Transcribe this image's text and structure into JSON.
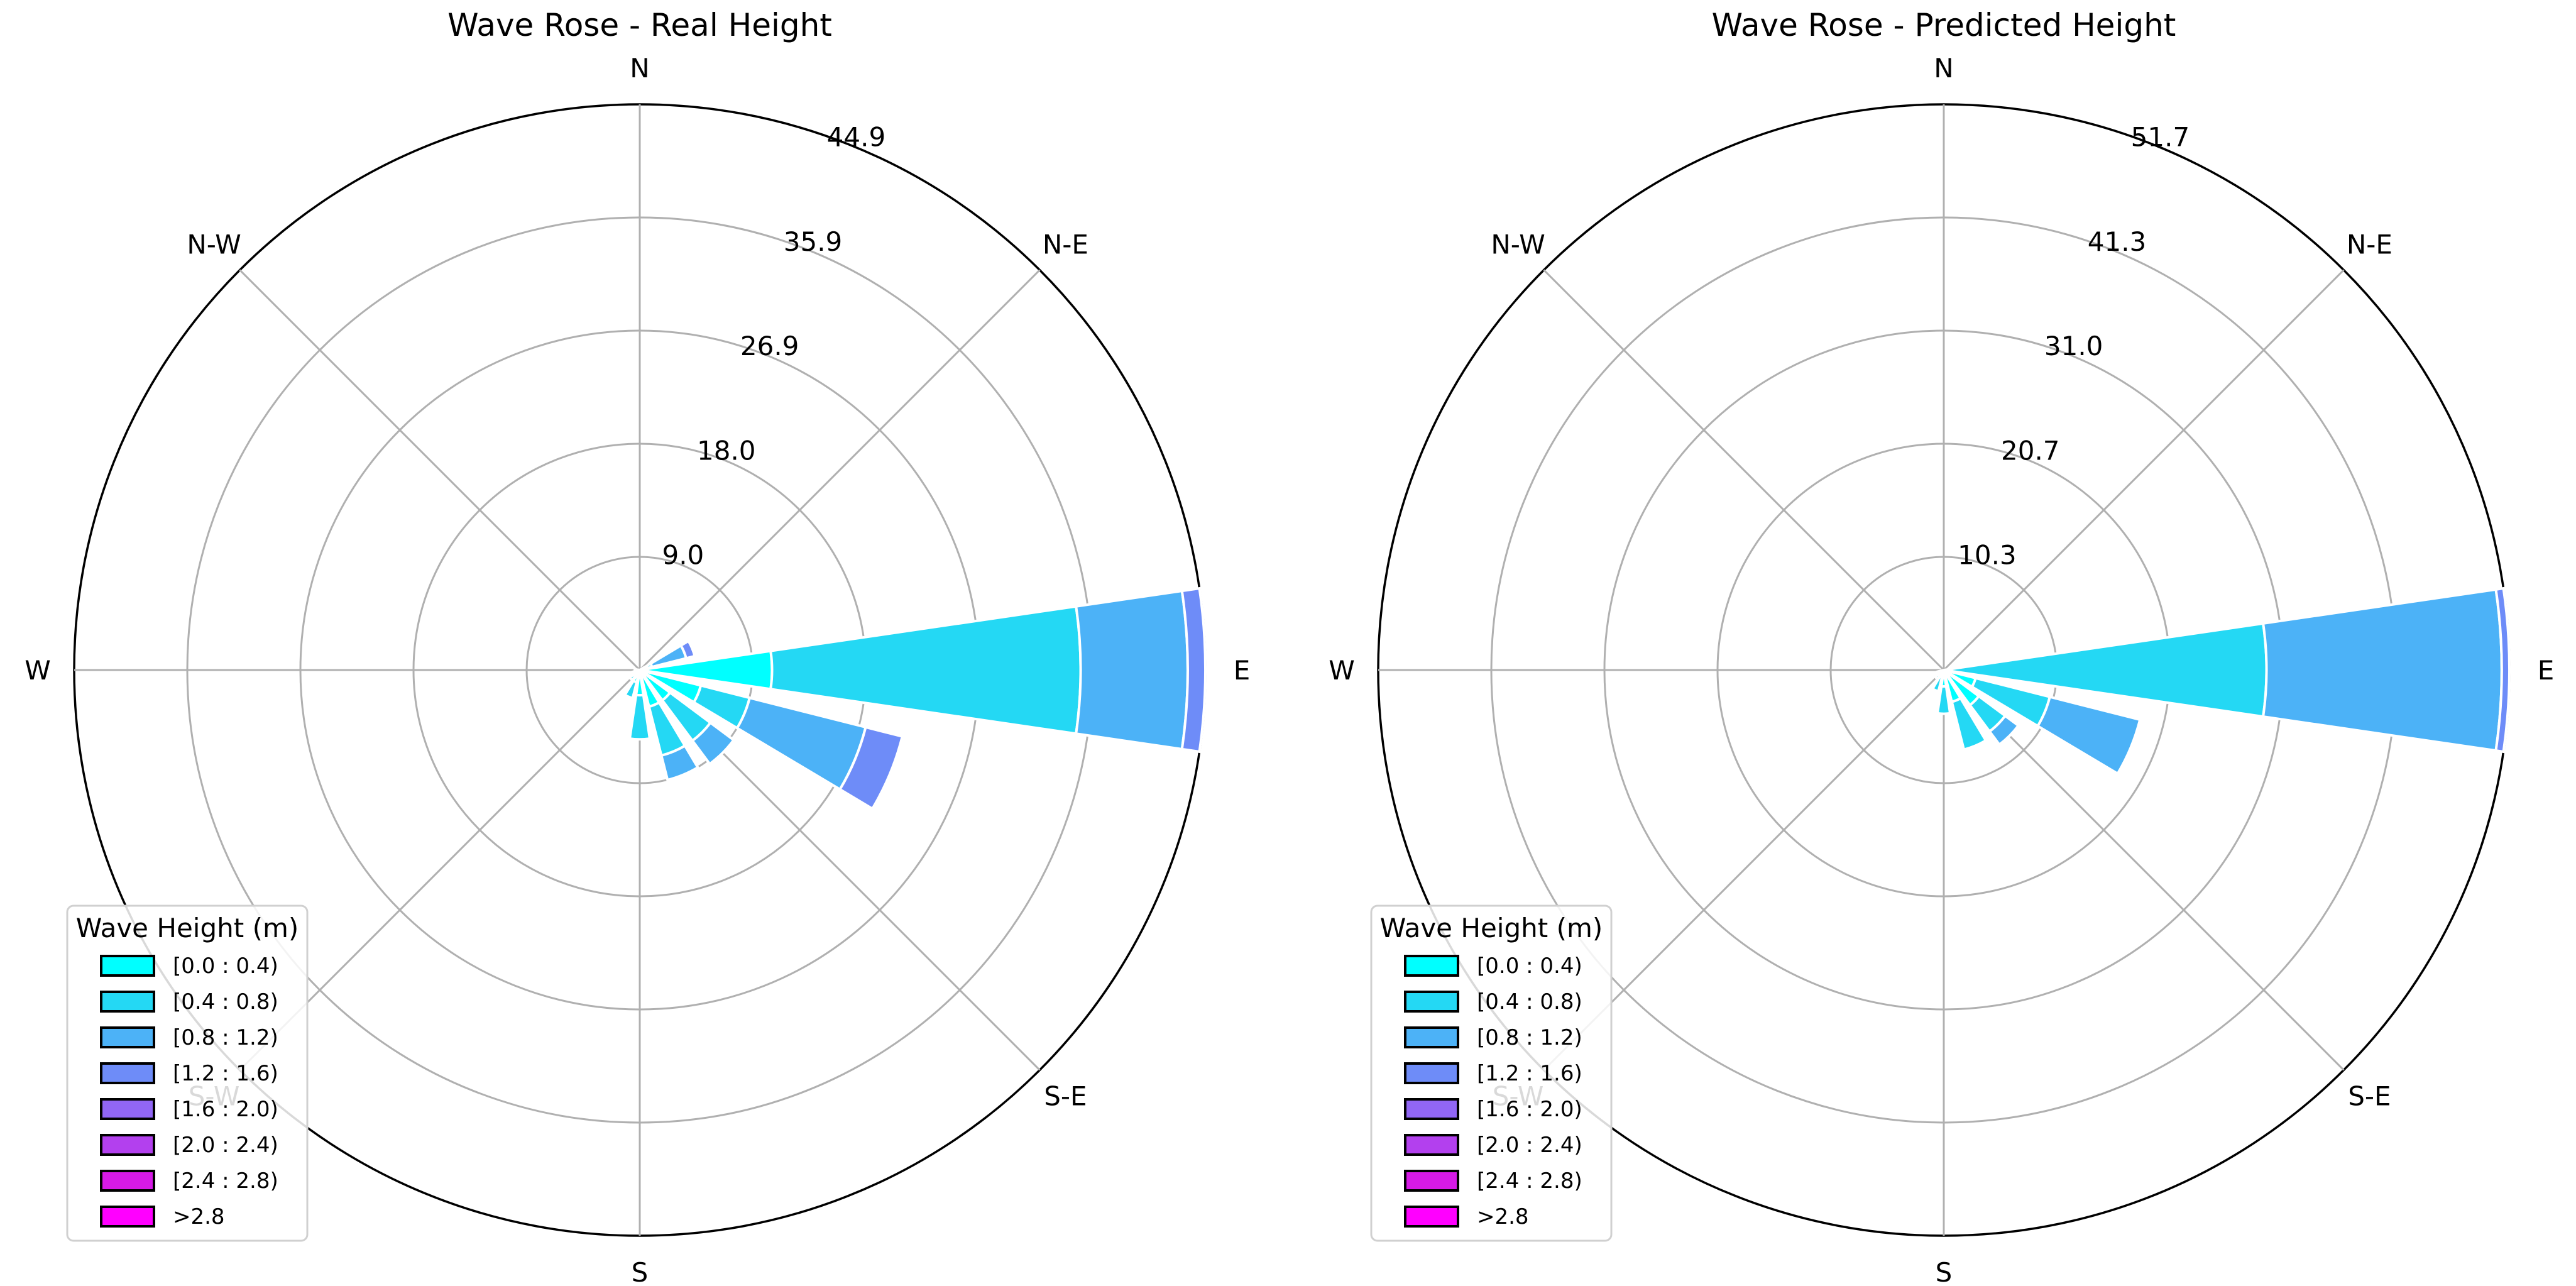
{
  "chart_data": [
    {
      "type": "windrose",
      "title": "Wave Rose - Real Height",
      "directions": [
        "N",
        "N-E",
        "E",
        "S-E",
        "S",
        "S-W",
        "W",
        "N-W"
      ],
      "radial_ticks": [
        "9.0",
        "18.0",
        "26.9",
        "35.9",
        "44.9"
      ],
      "rmax": 44.9,
      "grid": true,
      "legend": {
        "title": "Wave Height (m)",
        "placement": "lower-left",
        "bins": [
          "[0.0 : 0.4)",
          "[0.4 : 0.8)",
          "[0.8 : 1.2)",
          "[1.2 : 1.6)",
          "[1.6 : 2.0)",
          "[2.0 : 2.4)",
          "[2.4 : 2.8)",
          ">2.8"
        ],
        "colors": [
          "#00ffff",
          "#24d8f4",
          "#4cb2f7",
          "#6e8cf8",
          "#9166f5",
          "#b340ee",
          "#d61ae6",
          "#ff00ff"
        ]
      },
      "sectors": [
        {
          "direction_deg": 67.5,
          "cumulative": [
            0.3,
            1.0,
            3.8,
            4.5
          ]
        },
        {
          "direction_deg": 90,
          "cumulative": [
            10.5,
            35.0,
            43.5,
            44.9
          ]
        },
        {
          "direction_deg": 112.5,
          "cumulative": [
            5.0,
            9.0,
            18.5,
            21.5
          ]
        },
        {
          "direction_deg": 135,
          "cumulative": [
            3.0,
            7.0,
            9.3
          ]
        },
        {
          "direction_deg": 157.5,
          "cumulative": [
            3.0,
            7.0,
            9.0
          ]
        },
        {
          "direction_deg": 180,
          "cumulative": [
            2.0,
            5.5
          ]
        },
        {
          "direction_deg": 202.5,
          "cumulative": [
            1.0,
            2.3
          ]
        },
        {
          "direction_deg": 225,
          "cumulative": [
            0.5,
            1.0
          ]
        },
        {
          "direction_deg": 247.5,
          "cumulative": [
            0.3,
            0.6
          ]
        },
        {
          "direction_deg": 270,
          "cumulative": [
            0.2,
            0.4
          ]
        }
      ]
    },
    {
      "type": "windrose",
      "title": "Wave Rose - Predicted Height",
      "directions": [
        "N",
        "N-E",
        "E",
        "S-E",
        "S",
        "S-W",
        "W",
        "N-W"
      ],
      "radial_ticks": [
        "10.3",
        "20.7",
        "31.0",
        "41.3",
        "51.7"
      ],
      "rmax": 51.7,
      "grid": true,
      "legend": {
        "title": "Wave Height (m)",
        "placement": "lower-left",
        "bins": [
          "[0.0 : 0.4)",
          "[0.4 : 0.8)",
          "[0.8 : 1.2)",
          "[1.2 : 1.6)",
          "[1.6 : 2.0)",
          "[2.0 : 2.4)",
          "[2.4 : 2.8)",
          ">2.8"
        ],
        "colors": [
          "#00ffff",
          "#24d8f4",
          "#4cb2f7",
          "#6e8cf8",
          "#9166f5",
          "#b340ee",
          "#d61ae6",
          "#ff00ff"
        ]
      },
      "sectors": [
        {
          "direction_deg": 90,
          "cumulative": [
            0.5,
            29.5,
            51.0,
            51.7
          ]
        },
        {
          "direction_deg": 112.5,
          "cumulative": [
            3.0,
            10.0,
            18.5
          ]
        },
        {
          "direction_deg": 135,
          "cumulative": [
            4.0,
            7.0,
            8.5
          ]
        },
        {
          "direction_deg": 157.5,
          "cumulative": [
            3.0,
            7.5
          ]
        },
        {
          "direction_deg": 180,
          "cumulative": [
            1.5,
            4.0
          ]
        },
        {
          "direction_deg": 202.5,
          "cumulative": [
            0.5,
            2.0
          ]
        },
        {
          "direction_deg": 225,
          "cumulative": [
            0.5,
            1.0
          ]
        },
        {
          "direction_deg": 247.5,
          "cumulative": [
            0.3,
            0.6
          ]
        }
      ]
    }
  ]
}
